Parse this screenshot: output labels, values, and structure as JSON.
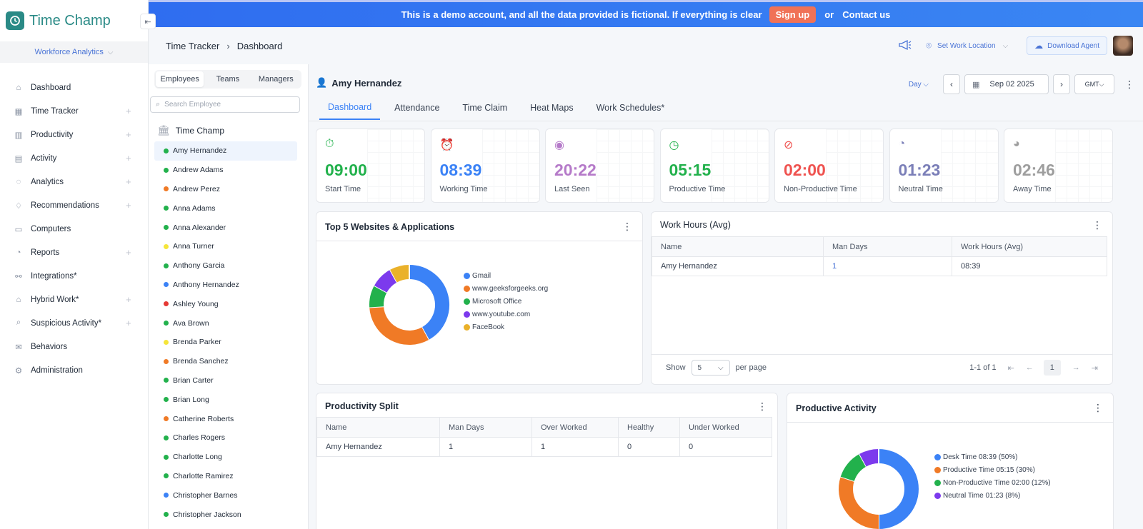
{
  "banner": {
    "message": "This is a demo account, and all the data provided is fictional. If everything is clear",
    "signup": "Sign up",
    "or": "or",
    "contact": "Contact us"
  },
  "app": {
    "name": "Time Champ",
    "workspace": "Workforce Analytics"
  },
  "sidebar": {
    "items": [
      {
        "label": "Dashboard",
        "icon": "home-icon",
        "plus": false
      },
      {
        "label": "Time Tracker",
        "icon": "grid-icon",
        "plus": true
      },
      {
        "label": "Productivity",
        "icon": "bar-chart-icon",
        "plus": true
      },
      {
        "label": "Activity",
        "icon": "activity-icon",
        "plus": true
      },
      {
        "label": "Analytics",
        "icon": "analytics-icon",
        "plus": true
      },
      {
        "label": "Recommendations",
        "icon": "bell-icon",
        "plus": true
      },
      {
        "label": "Computers",
        "icon": "monitor-icon",
        "plus": false
      },
      {
        "label": "Reports",
        "icon": "pie-icon",
        "plus": true
      },
      {
        "label": "Integrations*",
        "icon": "plug-icon",
        "plus": false
      },
      {
        "label": "Hybrid Work*",
        "icon": "hybrid-icon",
        "plus": true
      },
      {
        "label": "Suspicious Activity*",
        "icon": "search-icon",
        "plus": true
      },
      {
        "label": "Behaviors",
        "icon": "mail-icon",
        "plus": false
      },
      {
        "label": "Administration",
        "icon": "gear-icon",
        "plus": false
      }
    ]
  },
  "breadcrumb": {
    "parent": "Time Tracker",
    "sep": "›",
    "current": "Dashboard"
  },
  "topbar": {
    "location": "Set Work Location",
    "download": "Download Agent"
  },
  "employees": {
    "tabs": [
      "Employees",
      "Teams",
      "Managers"
    ],
    "search_placeholder": "Search Employee",
    "org": "Time Champ",
    "list": [
      {
        "name": "Amy Hernandez",
        "color": "#22b14c",
        "selected": true
      },
      {
        "name": "Andrew Adams",
        "color": "#22b14c"
      },
      {
        "name": "Andrew Perez",
        "color": "#f07a26"
      },
      {
        "name": "Anna Adams",
        "color": "#22b14c"
      },
      {
        "name": "Anna Alexander",
        "color": "#22b14c"
      },
      {
        "name": "Anna Turner",
        "color": "#f5e53a"
      },
      {
        "name": "Anthony Garcia",
        "color": "#22b14c"
      },
      {
        "name": "Anthony Hernandez",
        "color": "#3b82f6"
      },
      {
        "name": "Ashley Young",
        "color": "#e53935"
      },
      {
        "name": "Ava Brown",
        "color": "#22b14c"
      },
      {
        "name": "Brenda Parker",
        "color": "#f5e53a"
      },
      {
        "name": "Brenda Sanchez",
        "color": "#f07a26"
      },
      {
        "name": "Brian Carter",
        "color": "#22b14c"
      },
      {
        "name": "Brian Long",
        "color": "#22b14c"
      },
      {
        "name": "Catherine Roberts",
        "color": "#f07a26"
      },
      {
        "name": "Charles Rogers",
        "color": "#22b14c"
      },
      {
        "name": "Charlotte Long",
        "color": "#22b14c"
      },
      {
        "name": "Charlotte Ramirez",
        "color": "#22b14c"
      },
      {
        "name": "Christopher Barnes",
        "color": "#3b82f6"
      },
      {
        "name": "Christopher Jackson",
        "color": "#22b14c"
      }
    ]
  },
  "main": {
    "user": "Amy Hernandez",
    "period": "Day",
    "date": "Sep 02 2025",
    "timezone": "GMT",
    "tabs": [
      "Dashboard",
      "Attendance",
      "Time Claim",
      "Heat Maps",
      "Work Schedules*"
    ],
    "stats": [
      {
        "value": "09:00",
        "label": "Start Time",
        "color": "#22b14c",
        "icon": "timer-icon",
        "glyph": "⏱"
      },
      {
        "value": "08:39",
        "label": "Working Time",
        "color": "#3b82f6",
        "icon": "alarm-icon",
        "glyph": "⏰"
      },
      {
        "value": "20:22",
        "label": "Last Seen",
        "color": "#b57ac9",
        "icon": "eye-icon",
        "glyph": "◉"
      },
      {
        "value": "05:15",
        "label": "Productive Time",
        "color": "#22b14c",
        "icon": "clock-check-icon",
        "glyph": "◷"
      },
      {
        "value": "02:00",
        "label": "Non-Productive Time",
        "color": "#ef5350",
        "icon": "clock-block-icon",
        "glyph": "⊘"
      },
      {
        "value": "01:23",
        "label": "Neutral Time",
        "color": "#7b7fb8",
        "icon": "clock-neutral-icon",
        "glyph": "◔"
      },
      {
        "value": "02:46",
        "label": "Away Time",
        "color": "#9e9e9e",
        "icon": "clock-away-icon",
        "glyph": "◕"
      }
    ],
    "websites": {
      "title": "Top 5 Websites & Applications",
      "legend": [
        {
          "label": "Gmail",
          "color": "#3b82f6"
        },
        {
          "label": "www.geeksforgeeks.org",
          "color": "#f07a26"
        },
        {
          "label": "Microsoft Office",
          "color": "#22b14c"
        },
        {
          "label": "www.youtube.com",
          "color": "#7c3aed"
        },
        {
          "label": "FaceBook",
          "color": "#eab12a"
        }
      ]
    },
    "work_hours": {
      "title": "Work Hours (Avg)",
      "headers": [
        "Name",
        "Man Days",
        "Work Hours (Avg)"
      ],
      "rows": [
        [
          "Amy Hernandez",
          "1",
          "08:39"
        ]
      ],
      "show": "Show",
      "per_page_value": "5",
      "per_page": "per page",
      "range": "1-1 of 1",
      "page": "1"
    },
    "split": {
      "title": "Productivity Split",
      "headers": [
        "Name",
        "Man Days",
        "Over Worked",
        "Healthy",
        "Under Worked"
      ],
      "rows": [
        [
          "Amy Hernandez",
          "1",
          "1",
          "0",
          "0"
        ]
      ]
    },
    "productive_activity": {
      "title": "Productive Activity",
      "legend": [
        {
          "label": "Desk Time 08:39 (50%)",
          "color": "#3b82f6"
        },
        {
          "label": "Productive Time 05:15 (30%)",
          "color": "#f07a26"
        },
        {
          "label": "Non-Productive Time 02:00 (12%)",
          "color": "#22b14c"
        },
        {
          "label": "Neutral Time 01:23 (8%)",
          "color": "#7c3aed"
        }
      ]
    }
  },
  "chart_data": [
    {
      "type": "pie",
      "categories": [
        "Gmail",
        "www.geeksforgeeks.org",
        "Microsoft Office",
        "www.youtube.com",
        "FaceBook"
      ],
      "values": [
        42,
        32,
        9,
        9,
        8
      ]
    },
    {
      "type": "pie",
      "categories": [
        "Desk Time",
        "Productive Time",
        "Non-Productive Time",
        "Neutral Time"
      ],
      "values": [
        50,
        30,
        12,
        8
      ]
    }
  ]
}
